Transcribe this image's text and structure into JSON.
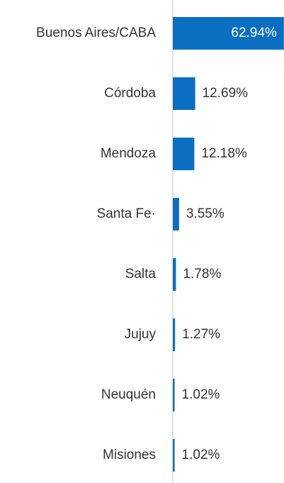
{
  "chart_data": {
    "type": "bar",
    "orientation": "horizontal",
    "categories": [
      "Buenos Aires/CABA",
      "Córdoba",
      "Mendoza",
      "Santa Fe·",
      "Salta",
      "Jujuy",
      "Neuquén",
      "Misiones"
    ],
    "values": [
      62.94,
      12.69,
      12.18,
      3.55,
      1.78,
      1.27,
      1.02,
      1.02
    ],
    "value_labels": [
      "62.94%",
      "12.69%",
      "12.18%",
      "3.55%",
      "1.78%",
      "1.27%",
      "1.02%",
      "1.02%"
    ],
    "color": "#0b6fc1",
    "xlim": [
      0,
      63
    ]
  }
}
